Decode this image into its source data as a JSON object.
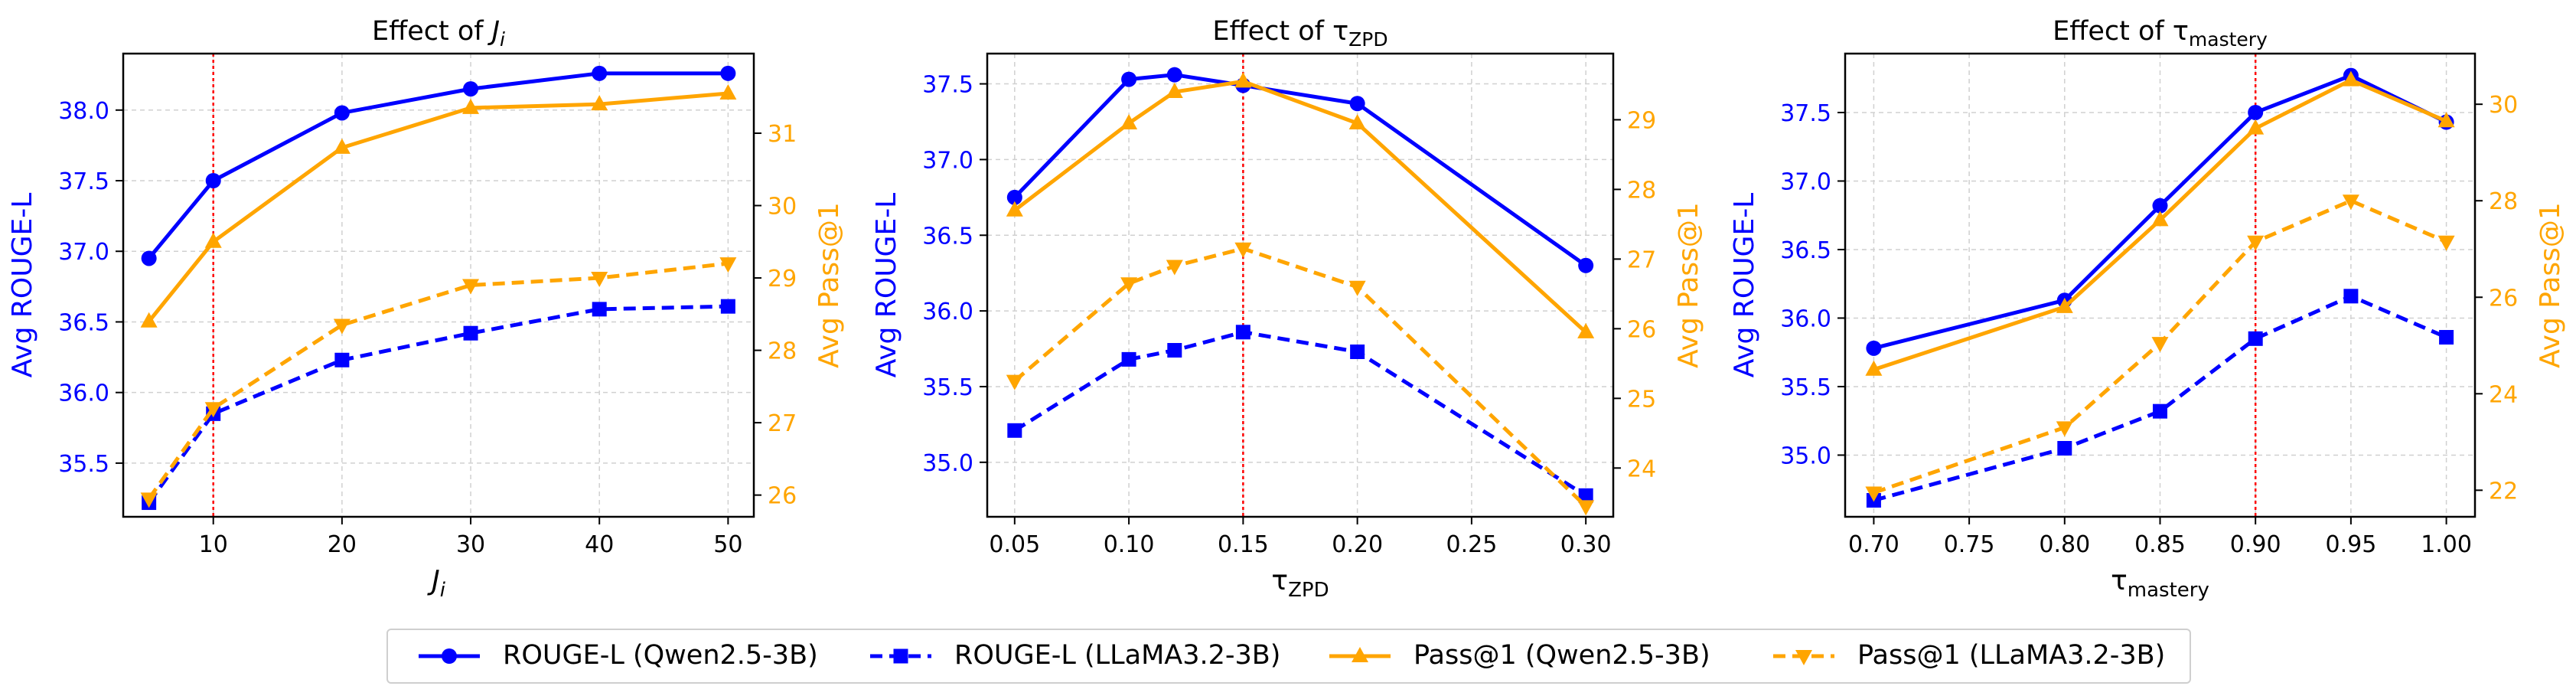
{
  "colors": {
    "rouge": "#0000ff",
    "pass": "#ffa500",
    "vline": "#ff0000",
    "grid": "#d0d0d0"
  },
  "chart_data": [
    {
      "type": "line",
      "title": "Effect of J_i",
      "title_prefix": "Effect of",
      "title_symbol": "J",
      "title_sub": "i",
      "xlabel": "J_i",
      "xlabel_main": "J",
      "xlabel_sub": "i",
      "ylabel": "Avg ROUGE-L",
      "y2label": "Avg Pass@1",
      "xlim": [
        3,
        52
      ],
      "ylim": [
        35.12,
        38.4
      ],
      "y2lim": [
        25.7,
        32.1
      ],
      "xticks": [
        10,
        20,
        30,
        40,
        50
      ],
      "yticks": [
        35.5,
        36.0,
        36.5,
        37.0,
        37.5,
        38.0
      ],
      "y2ticks": [
        26,
        27,
        28,
        29,
        30,
        31
      ],
      "vline": 10,
      "x": [
        5,
        10,
        20,
        30,
        40,
        50
      ],
      "series": [
        {
          "name": "ROUGE-L (Qwen2.5-3B)",
          "axis": "left",
          "values": [
            36.95,
            37.5,
            37.98,
            38.15,
            38.26,
            38.26
          ]
        },
        {
          "name": "ROUGE-L (LLaMA3.2-3B)",
          "axis": "left",
          "values": [
            35.22,
            35.85,
            36.23,
            36.42,
            36.59,
            36.61
          ]
        },
        {
          "name": "Pass@1 (Qwen2.5-3B)",
          "axis": "right",
          "values": [
            28.4,
            29.5,
            30.8,
            31.35,
            31.4,
            31.55
          ]
        },
        {
          "name": "Pass@1 (LLaMA3.2-3B)",
          "axis": "right",
          "values": [
            25.95,
            27.2,
            28.35,
            28.9,
            29.0,
            29.2
          ]
        }
      ]
    },
    {
      "type": "line",
      "title": "Effect of τ_ZPD",
      "title_prefix": "Effect of",
      "title_symbol": "τ",
      "title_sub": "ZPD",
      "xlabel": "τ_ZPD",
      "xlabel_main": "τ",
      "xlabel_sub": "ZPD",
      "ylabel": "Avg ROUGE-L",
      "y2label": "Avg Pass@1",
      "xlim": [
        0.038,
        0.312
      ],
      "ylim": [
        34.64,
        37.7
      ],
      "y2lim": [
        23.3,
        29.95
      ],
      "xticks": [
        0.05,
        0.1,
        0.15,
        0.2,
        0.25,
        0.3
      ],
      "xtick_labels": [
        "0.05",
        "0.10",
        "0.15",
        "0.20",
        "0.25",
        "0.30"
      ],
      "yticks": [
        35.0,
        35.5,
        36.0,
        36.5,
        37.0,
        37.5
      ],
      "y2ticks": [
        24,
        25,
        26,
        27,
        28,
        29
      ],
      "vline": 0.15,
      "x": [
        0.05,
        0.1,
        0.12,
        0.15,
        0.2,
        0.3
      ],
      "series": [
        {
          "name": "ROUGE-L (Qwen2.5-3B)",
          "axis": "left",
          "values": [
            36.75,
            37.53,
            37.56,
            37.49,
            37.37,
            36.3
          ]
        },
        {
          "name": "ROUGE-L (LLaMA3.2-3B)",
          "axis": "left",
          "values": [
            35.21,
            35.68,
            35.74,
            35.86,
            35.73,
            34.78
          ]
        },
        {
          "name": "Pass@1 (Qwen2.5-3B)",
          "axis": "right",
          "values": [
            27.7,
            28.95,
            29.4,
            29.55,
            28.95,
            25.95
          ]
        },
        {
          "name": "Pass@1 (LLaMA3.2-3B)",
          "axis": "right",
          "values": [
            25.25,
            26.65,
            26.9,
            27.15,
            26.6,
            23.45
          ]
        }
      ]
    },
    {
      "type": "line",
      "title": "Effect of τ_mastery",
      "title_prefix": "Effect of",
      "title_symbol": "τ",
      "title_sub": "mastery",
      "xlabel": "τ_mastery",
      "xlabel_main": "τ",
      "xlabel_sub": "mastery",
      "ylabel": "Avg ROUGE-L",
      "y2label": "Avg Pass@1",
      "xlim": [
        0.685,
        1.015
      ],
      "ylim": [
        34.55,
        37.93
      ],
      "y2lim": [
        21.45,
        31.05
      ],
      "xticks": [
        0.7,
        0.75,
        0.8,
        0.85,
        0.9,
        0.95,
        1.0
      ],
      "xtick_labels": [
        "0.70",
        "0.75",
        "0.80",
        "0.85",
        "0.90",
        "0.95",
        "1.00"
      ],
      "yticks": [
        35.0,
        35.5,
        36.0,
        36.5,
        37.0,
        37.5
      ],
      "y2ticks": [
        22,
        24,
        26,
        28,
        30
      ],
      "vline": 0.9,
      "x": [
        0.7,
        0.8,
        0.85,
        0.9,
        0.95,
        1.0
      ],
      "series": [
        {
          "name": "ROUGE-L (Qwen2.5-3B)",
          "axis": "left",
          "values": [
            35.78,
            36.13,
            36.82,
            37.5,
            37.77,
            37.43
          ]
        },
        {
          "name": "ROUGE-L (LLaMA3.2-3B)",
          "axis": "left",
          "values": [
            34.67,
            35.05,
            35.32,
            35.85,
            36.16,
            35.86
          ]
        },
        {
          "name": "Pass@1 (Qwen2.5-3B)",
          "axis": "right",
          "values": [
            24.5,
            25.8,
            27.6,
            29.5,
            30.5,
            29.65
          ]
        },
        {
          "name": "Pass@1 (LLaMA3.2-3B)",
          "axis": "right",
          "values": [
            21.95,
            23.3,
            25.05,
            27.15,
            28.0,
            27.15
          ]
        }
      ]
    }
  ],
  "legend": {
    "items": [
      {
        "label": "ROUGE-L (Qwen2.5-3B)",
        "color": "rouge",
        "dash": false,
        "marker": "circle"
      },
      {
        "label": "ROUGE-L (LLaMA3.2-3B)",
        "color": "rouge",
        "dash": true,
        "marker": "square"
      },
      {
        "label": "Pass@1 (Qwen2.5-3B)",
        "color": "pass",
        "dash": false,
        "marker": "triangle-up"
      },
      {
        "label": "Pass@1 (LLaMA3.2-3B)",
        "color": "pass",
        "dash": true,
        "marker": "triangle-down"
      }
    ]
  }
}
